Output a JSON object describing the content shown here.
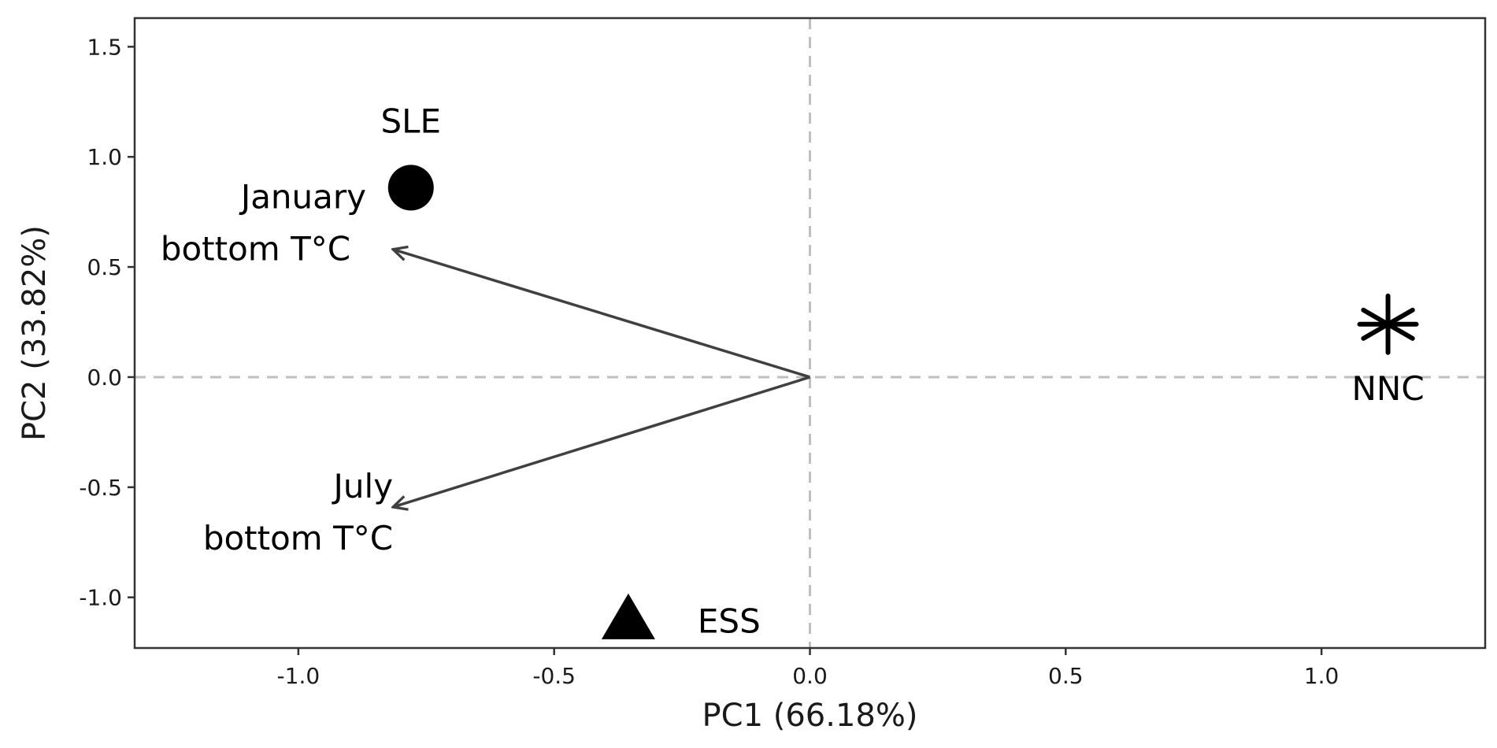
{
  "chart_data": {
    "type": "scatter",
    "title": "",
    "xlabel": "PC1 (66.18%)",
    "ylabel": "PC2 (33.82%)",
    "xlim": [
      -1.32,
      1.32
    ],
    "ylim": [
      -1.23,
      1.63
    ],
    "x_ticks": [
      -1.0,
      -0.5,
      0.0,
      0.5,
      1.0
    ],
    "x_tick_labels": [
      "-1.0",
      "-0.5",
      "0.0",
      "0.5",
      "1.0"
    ],
    "y_ticks": [
      -1.0,
      -0.5,
      0.0,
      0.5,
      1.0,
      1.5
    ],
    "y_tick_labels": [
      "-1.0",
      "-0.5",
      "0.0",
      "0.5",
      "1.0",
      "1.5"
    ],
    "grid": false,
    "reference_lines": {
      "x": 0,
      "y": 0,
      "style": "dashed",
      "color": "#bfbfbf"
    },
    "points": [
      {
        "label": "SLE",
        "x": -0.78,
        "y": 0.86,
        "shape": "circle"
      },
      {
        "label": "ESS",
        "x": -0.355,
        "y": -1.11,
        "shape": "triangle"
      },
      {
        "label": "NNC",
        "x": 1.13,
        "y": 0.24,
        "shape": "asterisk"
      }
    ],
    "vectors": [
      {
        "label_lines": [
          "January",
          "bottom T°C"
        ],
        "x": -0.815,
        "y": 0.58
      },
      {
        "label_lines": [
          "July",
          "bottom T°C"
        ],
        "x": -0.815,
        "y": -0.59
      }
    ],
    "colors": {
      "points": "#000000",
      "vectors": "#404040",
      "frame": "#333333",
      "reference": "#bfbfbf"
    }
  }
}
